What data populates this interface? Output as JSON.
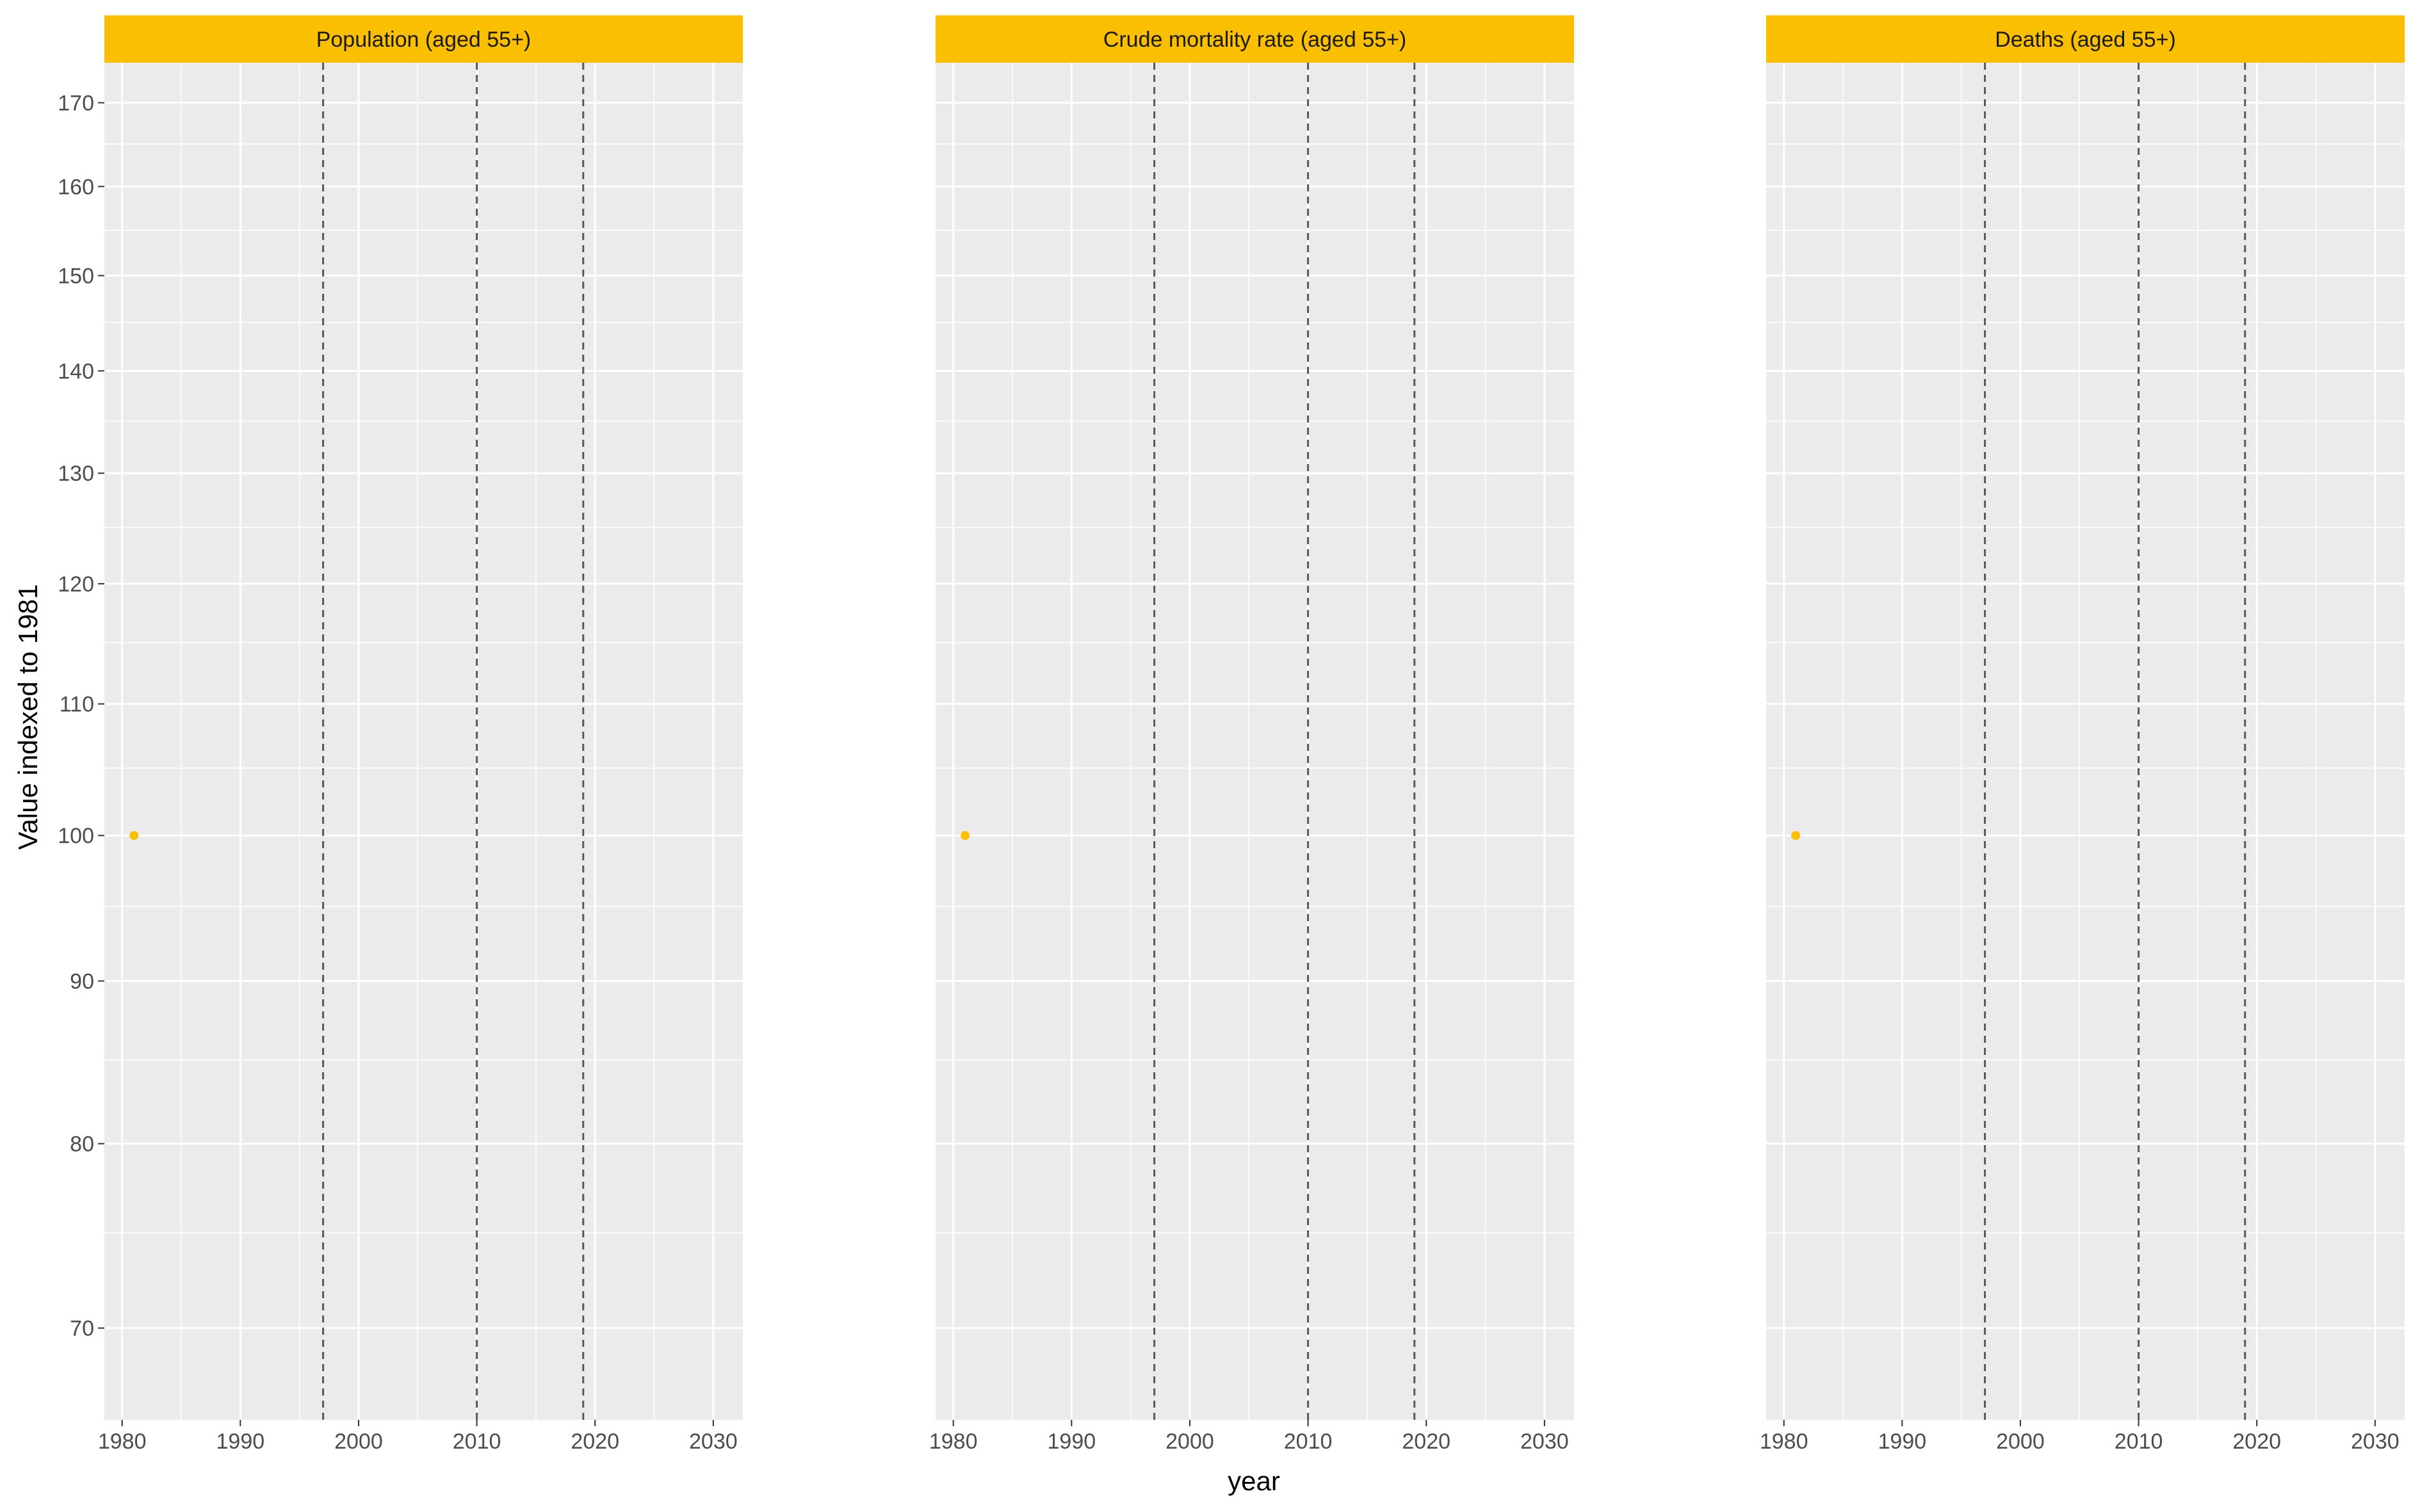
{
  "chart_data": {
    "type": "scatter",
    "layout": "facet-grid-1x3",
    "xlabel": "year",
    "ylabel": "Value indexed to 1981",
    "xlim": [
      1978.5,
      2032.5
    ],
    "ylim": [
      65.5,
      175
    ],
    "y_scale": "log",
    "x_ticks": [
      1980,
      1990,
      2000,
      2010,
      2020,
      2030
    ],
    "x_minor_ticks": [
      1985,
      1995,
      2005,
      2015,
      2025
    ],
    "y_ticks": [
      70,
      80,
      90,
      100,
      110,
      120,
      130,
      140,
      150,
      160,
      170
    ],
    "y_minor_ticks": [
      75,
      85,
      95,
      105,
      115,
      125,
      135,
      145,
      155,
      165
    ],
    "reference_lines_x": [
      1997,
      2010,
      2019
    ],
    "grid": true,
    "colors": {
      "point": "#F9BF00",
      "strip": "#F9BF00",
      "panel_background": "#EBEBEB",
      "grid": "#FFFFFF",
      "reference_line": "#595959"
    },
    "facets": [
      {
        "title": "Population (aged 55+)",
        "points": [
          {
            "x": 1981,
            "y": 100
          }
        ]
      },
      {
        "title": "Crude mortality rate (aged 55+)",
        "points": [
          {
            "x": 1981,
            "y": 100
          }
        ]
      },
      {
        "title": "Deaths (aged 55+)",
        "points": [
          {
            "x": 1981,
            "y": 100
          }
        ]
      }
    ]
  }
}
